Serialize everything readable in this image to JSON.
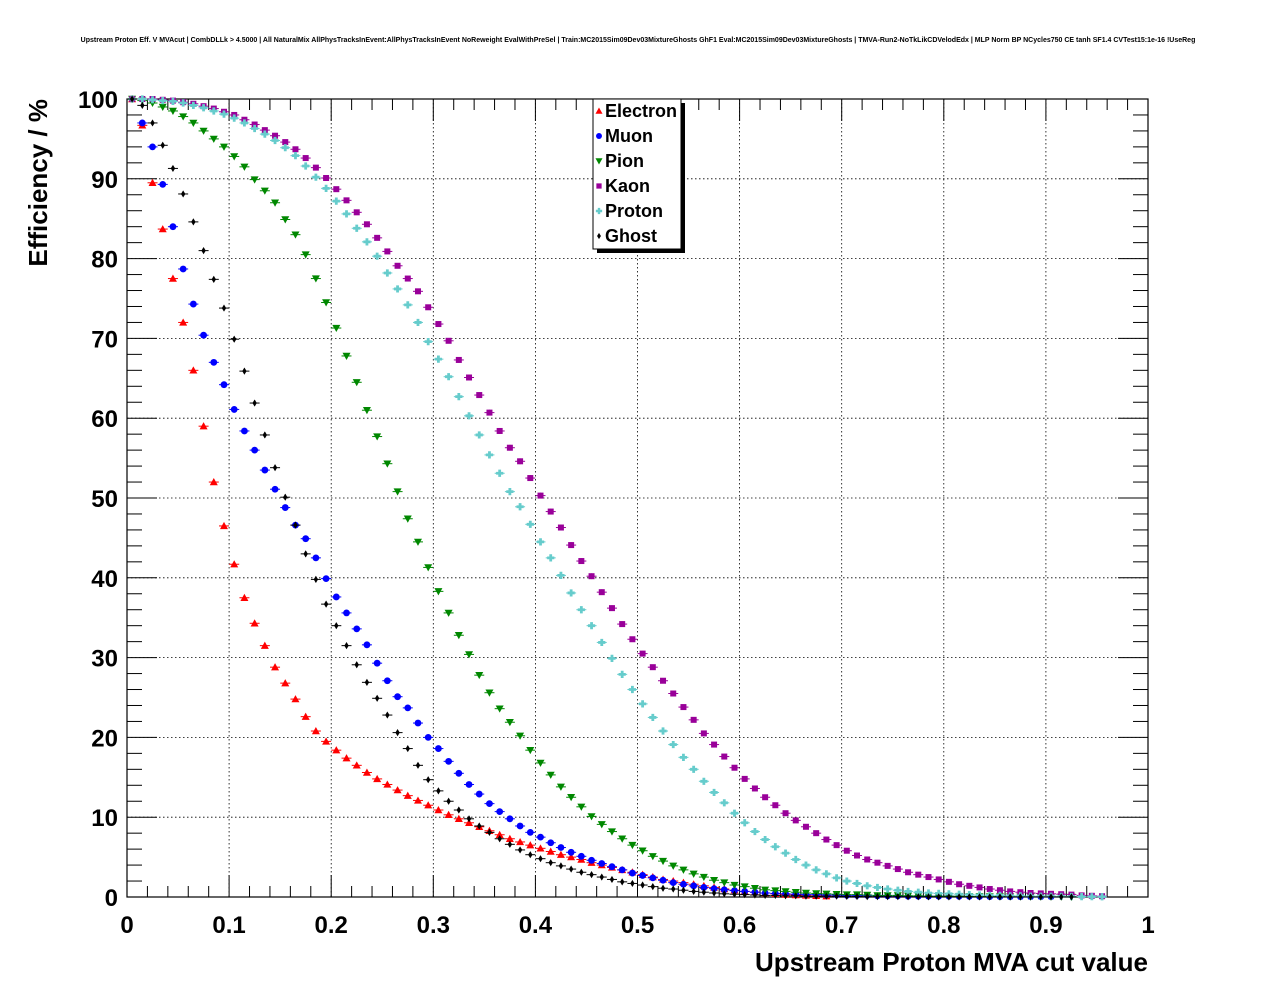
{
  "chart_data": {
    "type": "scatter",
    "title": "Upstream Proton Eff. V MVAcut | CombDLLk > 4.5000 | All NaturalMix AllPhysTracksInEvent:AllPhysTracksInEvent NoReweight EvalWithPreSel | Train:MC2015Sim09Dev03MixtureGhosts GhF1 Eval:MC2015Sim09Dev03MixtureGhosts | TMVA-Run2-NoTkLikCDVelodEdx | MLP Norm BP NCycles750 CE tanh SF1.4 CVTest15:1e-16 !UseReg",
    "xlabel": "Upstream Proton MVA cut value",
    "ylabel": "Efficiency / %",
    "xlim": [
      0,
      1
    ],
    "ylim": [
      0,
      100
    ],
    "x_ticks": [
      "0",
      "0.1",
      "0.2",
      "0.3",
      "0.4",
      "0.5",
      "0.6",
      "0.7",
      "0.8",
      "0.9",
      "1"
    ],
    "y_ticks": [
      "0",
      "10",
      "20",
      "30",
      "40",
      "50",
      "60",
      "70",
      "80",
      "90",
      "100"
    ],
    "grid": true,
    "legend_position": "top-center",
    "x_start": 0.005,
    "x_step": 0.01,
    "series": [
      {
        "name": "Electron",
        "color": "#ff0000",
        "marker": "triangle-up",
        "values": [
          100,
          96.7,
          89.5,
          83.7,
          77.5,
          72,
          66,
          59,
          52,
          46.5,
          41.7,
          37.5,
          34.3,
          31.5,
          28.8,
          26.8,
          24.8,
          22.6,
          20.8,
          19.5,
          18.4,
          17.4,
          16.5,
          15.6,
          14.8,
          14.1,
          13.4,
          12.7,
          12.1,
          11.5,
          10.9,
          10.3,
          9.8,
          9.3,
          8.8,
          8.3,
          7.8,
          7.3,
          6.9,
          6.5,
          6.1,
          5.7,
          5.3,
          5,
          4.7,
          4.3,
          4,
          3.7,
          3.4,
          3.1,
          2.8,
          2.5,
          2.2,
          2,
          1.8,
          1.6,
          1.4,
          1.2,
          1,
          0.85,
          0.7,
          0.6,
          0.5,
          0.4,
          0.3,
          0.25,
          0.2,
          0.15,
          0.1
        ]
      },
      {
        "name": "Muon",
        "color": "#0000ff",
        "marker": "circle",
        "values": [
          100,
          97,
          94,
          89.3,
          84,
          78.7,
          74.3,
          70.4,
          67,
          64.2,
          61.1,
          58.4,
          56,
          53.5,
          51.1,
          48.8,
          46.6,
          44.9,
          42.5,
          39.9,
          37.6,
          35.6,
          33.6,
          31.6,
          29.3,
          27.1,
          25.1,
          23.7,
          21.8,
          20,
          18.6,
          17,
          15.5,
          14.1,
          12.9,
          11.7,
          10.7,
          9.8,
          8.9,
          8.1,
          7.5,
          6.8,
          6.2,
          5.6,
          5.1,
          4.6,
          4.2,
          3.8,
          3.4,
          3,
          2.7,
          2.4,
          2.1,
          1.8,
          1.6,
          1.4,
          1.2,
          1.05,
          0.9,
          0.8,
          0.7,
          0.6,
          0.5,
          0.45,
          0.4,
          0.35,
          0.3,
          0.3,
          0.25,
          0.25,
          0.2,
          0.2,
          0.2,
          0.15,
          0.15,
          0.15,
          0.1,
          0.1,
          0.1,
          0.1,
          0.1,
          0.08,
          0.08,
          0.06,
          0.05,
          0.05,
          0.04,
          0.04,
          0.03,
          0.03,
          0.03
        ]
      },
      {
        "name": "Pion",
        "color": "#008800",
        "marker": "triangle-down",
        "values": [
          100,
          99.8,
          99.5,
          99,
          98.5,
          97.8,
          97,
          96,
          95,
          94,
          92.8,
          91.5,
          89.9,
          88.5,
          87,
          84.9,
          83,
          80.5,
          77.5,
          74.5,
          71.3,
          67.8,
          64.5,
          61,
          57.7,
          54.3,
          50.8,
          47.4,
          44.5,
          41.3,
          38.3,
          35.6,
          32.8,
          30.4,
          27.8,
          25.6,
          23.6,
          21.9,
          20.2,
          18.4,
          16.8,
          15.3,
          13.8,
          12.5,
          11.3,
          10.1,
          9.1,
          8.2,
          7.3,
          6.5,
          5.8,
          5.1,
          4.5,
          3.9,
          3.4,
          2.9,
          2.5,
          2.1,
          1.8,
          1.5,
          1.3,
          1.1,
          0.9,
          0.8,
          0.7,
          0.6,
          0.5,
          0.45,
          0.4,
          0.35,
          0.3,
          0.3,
          0.25,
          0.2,
          0.2,
          0.2,
          0.15,
          0.15,
          0.1,
          0.1,
          0.1,
          0.1,
          0.08,
          0.08,
          0.06,
          0.05,
          0.05,
          0.04,
          0.04,
          0.03,
          0.03,
          0.03,
          0.02
        ]
      },
      {
        "name": "Kaon",
        "color": "#990099",
        "marker": "square",
        "values": [
          100,
          100,
          100,
          99.9,
          99.8,
          99.6,
          99.4,
          99.1,
          98.8,
          98.4,
          98,
          97.4,
          96.8,
          96.1,
          95.4,
          94.6,
          93.7,
          92.6,
          91.4,
          90.1,
          88.7,
          87.3,
          85.8,
          84.3,
          82.6,
          80.9,
          79.1,
          77.5,
          75.9,
          73.9,
          71.8,
          69.7,
          67.3,
          65.1,
          62.9,
          60.7,
          58.4,
          56.3,
          54.6,
          52.5,
          50.3,
          48.3,
          46.3,
          44.1,
          42.1,
          40.2,
          38.2,
          36.2,
          34.2,
          32.3,
          30.5,
          28.8,
          27.1,
          25.5,
          23.8,
          22.2,
          20.5,
          19.1,
          17.6,
          16.2,
          14.8,
          13.6,
          12.5,
          11.5,
          10.5,
          9.6,
          8.8,
          8,
          7.2,
          6.5,
          5.8,
          5.2,
          4.7,
          4.3,
          3.9,
          3.5,
          3.1,
          2.8,
          2.5,
          2.2,
          1.9,
          1.6,
          1.4,
          1.2,
          1,
          0.85,
          0.7,
          0.6,
          0.5,
          0.45,
          0.4,
          0.35,
          0.3,
          0.2,
          0.15,
          0.1
        ]
      },
      {
        "name": "Proton",
        "color": "#66cccc",
        "marker": "cross",
        "values": [
          100,
          100,
          99.9,
          99.8,
          99.7,
          99.5,
          99.2,
          98.9,
          98.5,
          98.1,
          97.6,
          97,
          96.3,
          95.6,
          94.8,
          93.9,
          92.9,
          91.6,
          90.2,
          88.8,
          87.2,
          85.6,
          83.8,
          82.1,
          80.3,
          78.2,
          76.2,
          74.2,
          72,
          69.6,
          67.4,
          65.2,
          62.7,
          60.3,
          57.9,
          55.4,
          53.1,
          50.8,
          48.9,
          46.7,
          44.5,
          42.5,
          40.3,
          38.1,
          36,
          34,
          31.9,
          29.9,
          27.9,
          26,
          24.2,
          22.5,
          20.8,
          19.1,
          17.5,
          16,
          14.5,
          13.1,
          11.8,
          10.5,
          9.3,
          8.2,
          7.2,
          6.3,
          5.5,
          4.7,
          4,
          3.4,
          2.9,
          2.4,
          2,
          1.7,
          1.4,
          1.2,
          1,
          0.85,
          0.7,
          0.6,
          0.5,
          0.45,
          0.4,
          0.35,
          0.3,
          0.25,
          0.2,
          0.2,
          0.15,
          0.15,
          0.1,
          0.1,
          0.1,
          0.08,
          0.06,
          0.05,
          0.04,
          0.03
        ]
      },
      {
        "name": "Ghost",
        "color": "#000000",
        "marker": "diamond",
        "values": [
          100,
          99.2,
          97,
          94.2,
          91.3,
          88.1,
          84.6,
          81,
          77.4,
          73.8,
          69.9,
          65.9,
          61.9,
          57.9,
          53.8,
          50.1,
          46.6,
          43,
          39.8,
          36.7,
          34,
          31.5,
          29.1,
          26.9,
          24.9,
          22.8,
          20.6,
          18.6,
          16.5,
          14.7,
          13.3,
          12,
          10.9,
          9.8,
          8.9,
          8.1,
          7.3,
          6.6,
          5.9,
          5.3,
          4.8,
          4.3,
          3.9,
          3.5,
          3.1,
          2.8,
          2.5,
          2.2,
          1.9,
          1.7,
          1.5,
          1.3,
          1.1,
          1,
          0.85,
          0.7,
          0.6,
          0.5,
          0.4,
          0.35,
          0.3,
          0.25,
          0.2,
          0.2,
          0.15,
          0.15,
          0.1,
          0.1,
          0.1,
          0.1,
          0.08,
          0.06,
          0.05,
          0.05,
          0.04,
          0.04,
          0.03,
          0.03,
          0.03,
          0.02,
          0.02,
          0.02,
          0.02,
          0.02,
          0.01,
          0.01,
          0.01,
          0.01,
          0.01,
          0.01,
          0.01,
          0.01,
          0.01
        ]
      }
    ]
  }
}
